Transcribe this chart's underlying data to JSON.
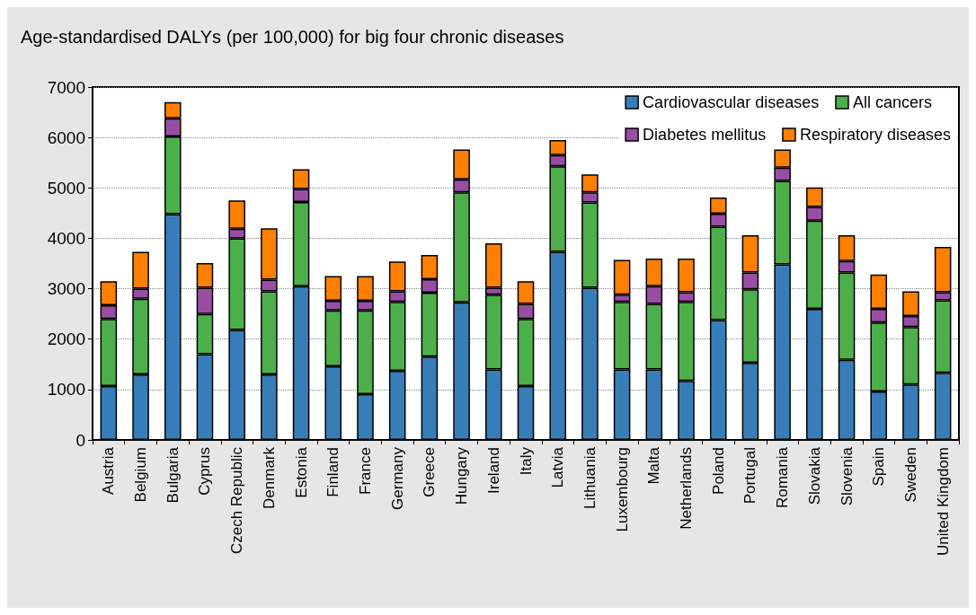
{
  "chart_data": {
    "type": "bar",
    "title": "Age-standardised DALYs (per 100,000) for big four chronic diseases",
    "categories": [
      "Austria",
      "Belgium",
      "Bulgaria",
      "Cyprus",
      "Czech Republic",
      "Denmark",
      "Estonia",
      "Finland",
      "France",
      "Germany",
      "Greece",
      "Hungary",
      "Ireland",
      "Italy",
      "Latvia",
      "Lithuania",
      "Luxembourg",
      "Malta",
      "Netherlands",
      "Poland",
      "Portugal",
      "Romania",
      "Slovakia",
      "Slovenia",
      "Spain",
      "Sweden",
      "United Kingdom"
    ],
    "stacked": true,
    "series": [
      {
        "name": "Cardiovascular diseases",
        "color": "#377eb8",
        "values": [
          1070,
          1300,
          4480,
          1700,
          2180,
          1300,
          3050,
          1460,
          910,
          1370,
          1650,
          2730,
          1400,
          1070,
          3730,
          3020,
          1400,
          1400,
          1170,
          2380,
          1530,
          3480,
          2600,
          1590,
          960,
          1100,
          1330
        ]
      },
      {
        "name": "All cancers",
        "color": "#4daf4a",
        "values": [
          1330,
          1500,
          1540,
          800,
          1820,
          1650,
          1670,
          1110,
          1660,
          1370,
          1270,
          2180,
          1480,
          1330,
          1700,
          1690,
          1340,
          1300,
          1570,
          1850,
          1460,
          1660,
          1750,
          1730,
          1370,
          1140,
          1440
        ]
      },
      {
        "name": "Diabetes mellitus",
        "color": "#984ea3",
        "values": [
          270,
          200,
          360,
          520,
          190,
          230,
          260,
          190,
          190,
          210,
          270,
          260,
          140,
          300,
          220,
          200,
          140,
          350,
          190,
          260,
          330,
          260,
          270,
          230,
          270,
          220,
          160
        ]
      },
      {
        "name": "Respiratory diseases",
        "color": "#ff7f00",
        "values": [
          480,
          730,
          320,
          490,
          560,
          1020,
          390,
          490,
          490,
          590,
          480,
          590,
          880,
          450,
          300,
          360,
          690,
          550,
          670,
          320,
          740,
          360,
          390,
          510,
          680,
          490,
          900
        ]
      }
    ],
    "ylim": [
      0,
      7000
    ],
    "yticks": [
      0,
      1000,
      2000,
      3000,
      4000,
      5000,
      6000,
      7000
    ],
    "grid": "y",
    "legend": "top right"
  }
}
